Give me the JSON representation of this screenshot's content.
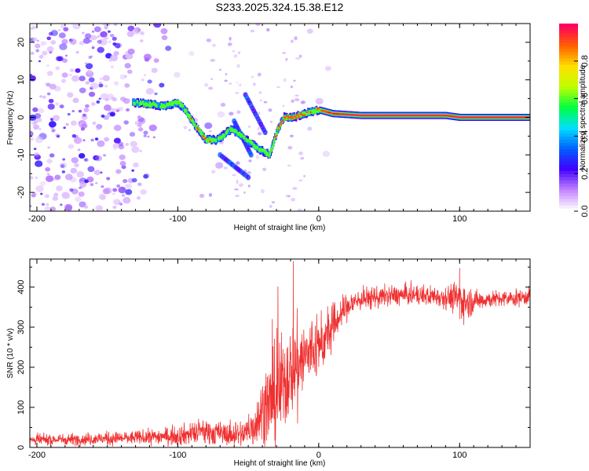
{
  "title": "S233.2025.324.15.38.E12",
  "colors": {
    "snr_line": "#f03030",
    "track_peak": "#ff2a5a"
  },
  "chart_data": [
    {
      "type": "heatmap",
      "title": "S233.2025.324.15.38.E12",
      "xlabel": "Height of straight line (km)",
      "ylabel": "Frequency (Hz)",
      "xlim": [
        -205,
        150
      ],
      "ylim": [
        -25,
        25
      ],
      "xticks": [
        -200,
        -100,
        0,
        100
      ],
      "yticks": [
        -20,
        -10,
        0,
        10,
        20
      ],
      "colorbar": {
        "label": "Normalized spectral amplitude",
        "range": [
          0.0,
          1.0
        ],
        "ticks": [
          "0.0",
          "0.2",
          "0.4",
          "0.6",
          "0.8"
        ],
        "colormap": [
          "#ffffff",
          "#c080ff",
          "#4000ff",
          "#0060ff",
          "#00e0ff",
          "#00ff40",
          "#c0ff00",
          "#ffe000",
          "#ff6000",
          "#ff0060"
        ]
      },
      "track": {
        "x": [
          -132,
          -120,
          -110,
          -100,
          -95,
          -88,
          -80,
          -72,
          -62,
          -55,
          -48,
          -40,
          -35,
          -30,
          -25,
          -18,
          -10,
          0,
          10,
          30,
          60,
          90,
          100,
          120,
          150
        ],
        "freq": [
          4,
          3.5,
          3,
          4,
          2,
          -2,
          -6,
          -6,
          -3,
          -5,
          -7,
          -9,
          -10,
          -4,
          0,
          0,
          1,
          2,
          1,
          0.5,
          0.5,
          0.5,
          0,
          0,
          0
        ],
        "amplitude": [
          0.3,
          0.35,
          0.35,
          0.4,
          0.4,
          0.4,
          0.45,
          0.35,
          0.35,
          0.3,
          0.3,
          0.3,
          0.35,
          0.5,
          0.5,
          0.55,
          0.5,
          0.5,
          0.75,
          0.9,
          0.9,
          0.85,
          0.8,
          0.9,
          0.9
        ]
      }
    },
    {
      "type": "line",
      "xlabel": "Height of straight line (km)",
      "ylabel": "SNR (10 * v/v)",
      "xlim": [
        -205,
        150
      ],
      "ylim": [
        0,
        470
      ],
      "xticks": [
        -200,
        -100,
        0,
        100
      ],
      "yticks": [
        0,
        100,
        200,
        300,
        400
      ],
      "envelope": {
        "x": [
          -205,
          -180,
          -150,
          -130,
          -110,
          -100,
          -90,
          -80,
          -70,
          -60,
          -50,
          -45,
          -40,
          -35,
          -30,
          -25,
          -20,
          -15,
          -10,
          -5,
          0,
          5,
          10,
          15,
          20,
          25,
          30,
          40,
          50,
          60,
          70,
          80,
          90,
          95,
          100,
          105,
          110,
          120,
          130,
          140,
          150
        ],
        "mean": [
          18,
          20,
          22,
          24,
          28,
          30,
          35,
          40,
          35,
          30,
          38,
          60,
          90,
          110,
          130,
          160,
          190,
          210,
          225,
          240,
          250,
          270,
          300,
          330,
          350,
          362,
          370,
          375,
          378,
          380,
          380,
          378,
          376,
          374,
          372,
          360,
          365,
          370,
          370,
          372,
          378
        ],
        "noise": [
          10,
          10,
          12,
          12,
          15,
          18,
          20,
          25,
          20,
          20,
          30,
          40,
          60,
          80,
          90,
          90,
          80,
          80,
          70,
          60,
          50,
          45,
          40,
          30,
          25,
          22,
          20,
          20,
          18,
          18,
          18,
          18,
          20,
          25,
          35,
          30,
          20,
          15,
          15,
          15,
          15
        ]
      },
      "peaks": [
        {
          "x": -18,
          "y": 465
        },
        {
          "x": 100,
          "y": 448
        },
        {
          "x": 100,
          "y": 320
        },
        {
          "x": -15,
          "y": 60
        }
      ]
    }
  ]
}
